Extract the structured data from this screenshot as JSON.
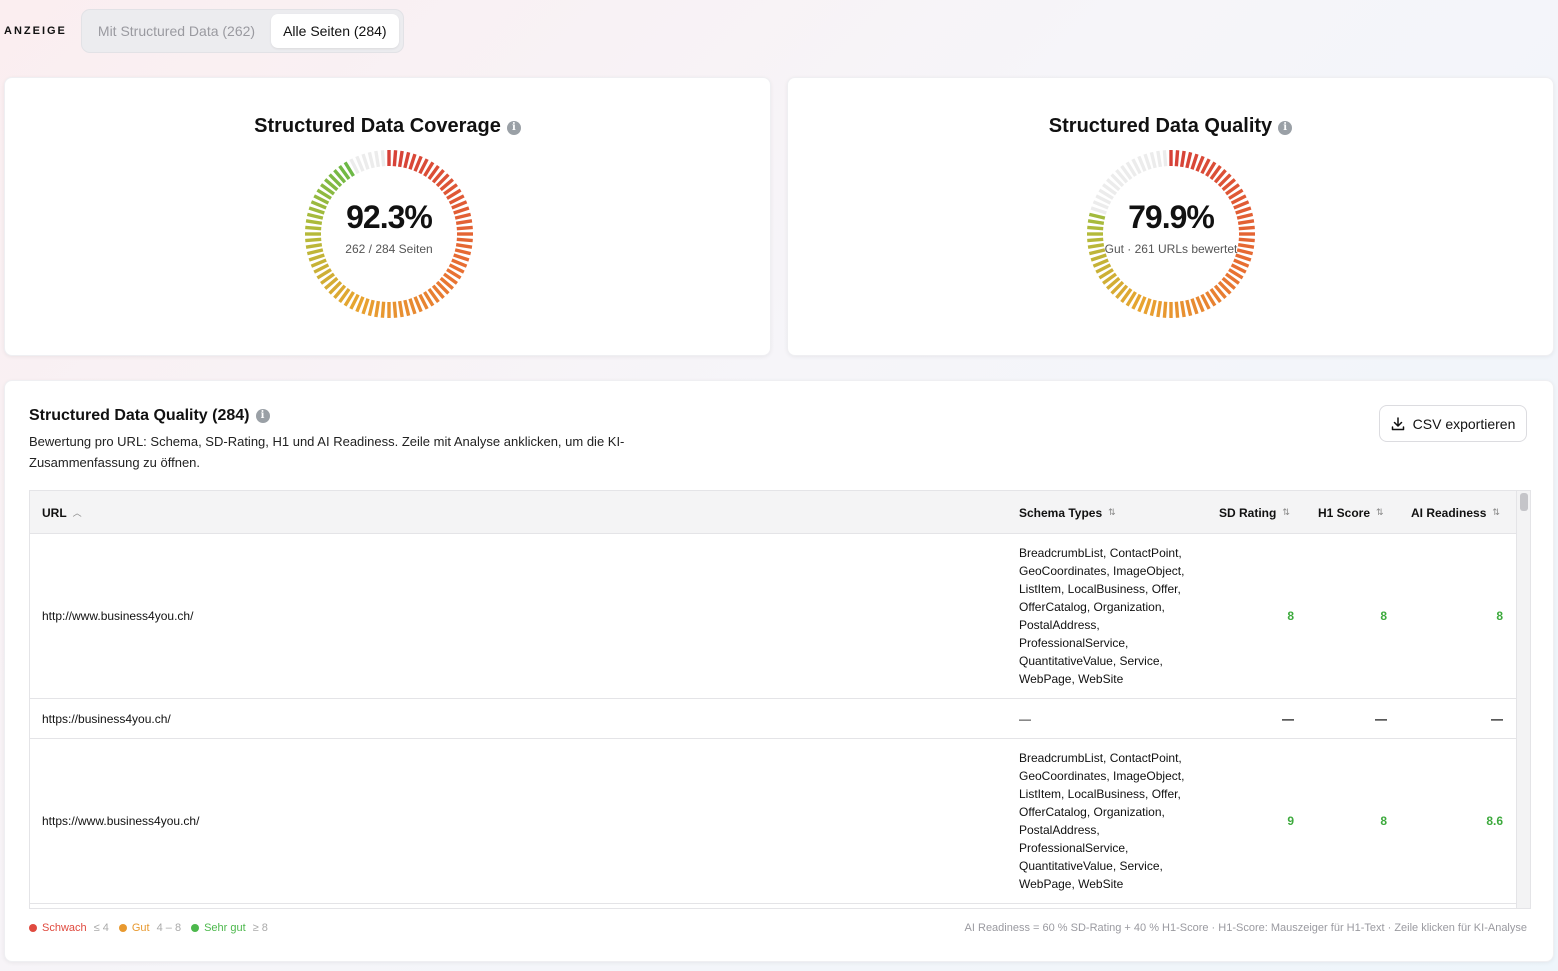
{
  "filter": {
    "label": "ANZEIGE",
    "options": [
      {
        "label": "Mit Structured Data (262)",
        "active": false
      },
      {
        "label": "Alle Seiten (284)",
        "active": true
      }
    ]
  },
  "coverage": {
    "title": "Structured Data Coverage",
    "value": "92.3%",
    "sub": "262 / 284 Seiten",
    "fraction": 0.923
  },
  "quality_gauge": {
    "title": "Structured Data Quality",
    "value": "79.9%",
    "sub": "Gut · 261 URLs bewertet",
    "fraction": 0.799
  },
  "table_card": {
    "title": "Structured Data Quality (284)",
    "description": "Bewertung pro URL: Schema, SD-Rating, H1 und AI Readiness. Zeile mit Analyse anklicken, um die KI-Zusammenfassung zu öffnen.",
    "csv_label": "CSV exportieren",
    "columns": {
      "url": "URL",
      "schema": "Schema Types",
      "sd": "SD Rating",
      "h1": "H1 Score",
      "ai": "AI Readiness"
    },
    "rows": [
      {
        "url": "http://www.business4you.ch/",
        "schema": "BreadcrumbList, ContactPoint, GeoCoordinates, ImageObject, ListItem, LocalBusiness, Offer, OfferCatalog, Organization, PostalAddress, ProfessionalService, QuantitativeValue, Service, WebPage, WebSite",
        "sd": "8",
        "h1": "8",
        "ai": "8"
      },
      {
        "url": "https://business4you.ch/",
        "schema": "—",
        "sd": "—",
        "h1": "—",
        "ai": "—"
      },
      {
        "url": "https://www.business4you.ch/",
        "schema": "BreadcrumbList, ContactPoint, GeoCoordinates, ImageObject, ListItem, LocalBusiness, Offer, OfferCatalog, Organization, PostalAddress, ProfessionalService, QuantitativeValue, Service, WebPage, WebSite",
        "sd": "9",
        "h1": "8",
        "ai": "8.6"
      }
    ],
    "legend": [
      {
        "label": "Schwach",
        "range": "≤ 4",
        "color": "#e04a3f"
      },
      {
        "label": "Gut",
        "range": "4 – 8",
        "color": "#e8992f"
      },
      {
        "label": "Sehr gut",
        "range": "≥ 8",
        "color": "#4cb84c"
      }
    ],
    "footnote": "AI Readiness = 60 % SD-Rating + 40 % H1-Score · H1-Score: Mauszeiger für H1-Text · Zeile klicken für KI-Analyse"
  }
}
